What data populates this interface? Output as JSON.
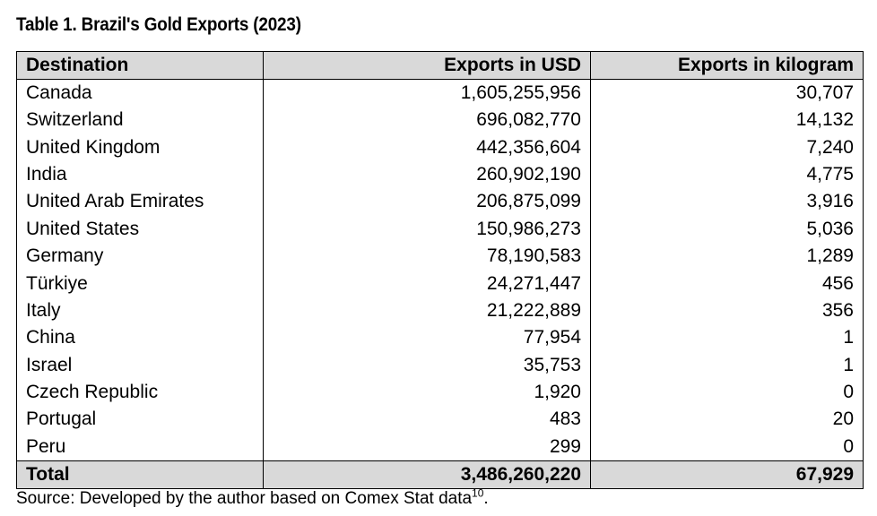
{
  "title": "Table 1. Brazil's Gold Exports (2023)",
  "table": {
    "headers": {
      "destination": "Destination",
      "usd": "Exports in USD",
      "kg": "Exports in kilogram"
    },
    "rows": [
      {
        "destination": "Canada",
        "usd": "1,605,255,956",
        "kg": "30,707"
      },
      {
        "destination": "Switzerland",
        "usd": "696,082,770",
        "kg": "14,132"
      },
      {
        "destination": "United Kingdom",
        "usd": "442,356,604",
        "kg": "7,240"
      },
      {
        "destination": "India",
        "usd": "260,902,190",
        "kg": "4,775"
      },
      {
        "destination": "United Arab Emirates",
        "usd": "206,875,099",
        "kg": "3,916"
      },
      {
        "destination": "United States",
        "usd": "150,986,273",
        "kg": "5,036"
      },
      {
        "destination": "Germany",
        "usd": "78,190,583",
        "kg": "1,289"
      },
      {
        "destination": "Türkiye",
        "usd": "24,271,447",
        "kg": "456"
      },
      {
        "destination": "Italy",
        "usd": "21,222,889",
        "kg": "356"
      },
      {
        "destination": "China",
        "usd": "77,954",
        "kg": "1"
      },
      {
        "destination": "Israel",
        "usd": "35,753",
        "kg": "1"
      },
      {
        "destination": "Czech Republic",
        "usd": "1,920",
        "kg": "0"
      },
      {
        "destination": "Portugal",
        "usd": "483",
        "kg": "20"
      },
      {
        "destination": "Peru",
        "usd": "299",
        "kg": "0"
      }
    ],
    "total": {
      "label": "Total",
      "usd": "3,486,260,220",
      "kg": "67,929"
    }
  },
  "source": {
    "text": "Source: Developed by the author based on Comex Stat data",
    "footnote": "10",
    "end": "."
  },
  "colors": {
    "header_background": "#d9d9d9",
    "border": "#000000"
  }
}
